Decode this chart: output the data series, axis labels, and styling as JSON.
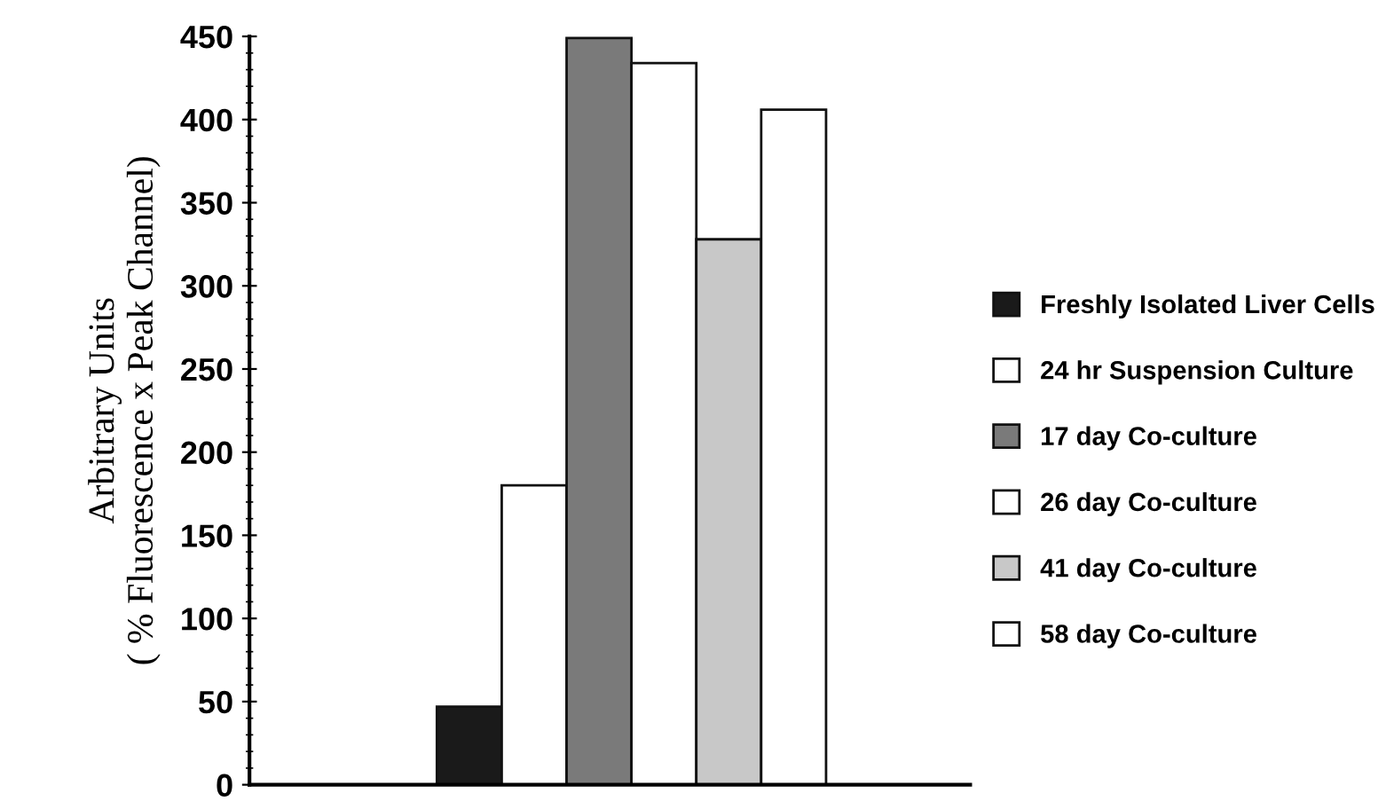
{
  "chart_data": {
    "type": "bar",
    "ylabel": "Arbitrary Units\n( % Fluorescence x Peak Channel)",
    "categories": [
      null
    ],
    "series": [
      {
        "name": "Freshly Isolated Liver Cells",
        "color": "#1a1a1a",
        "values": [
          47
        ]
      },
      {
        "name": "24 hr Suspension Culture",
        "color": "#ffffff",
        "values": [
          180
        ]
      },
      {
        "name": "17 day Co-culture",
        "color": "#7a7a7a",
        "values": [
          449
        ]
      },
      {
        "name": "26 day Co-culture",
        "color": "#ffffff",
        "values": [
          434
        ]
      },
      {
        "name": "41 day Co-culture",
        "color": "#c8c8c8",
        "values": [
          328
        ]
      },
      {
        "name": "58 day Co-culture",
        "color": "#ffffff",
        "values": [
          406
        ]
      }
    ],
    "ylim": [
      0,
      450
    ],
    "yticks": [
      0,
      50,
      100,
      150,
      200,
      250,
      300,
      350,
      400,
      450
    ],
    "grid": false,
    "legend": "right"
  }
}
